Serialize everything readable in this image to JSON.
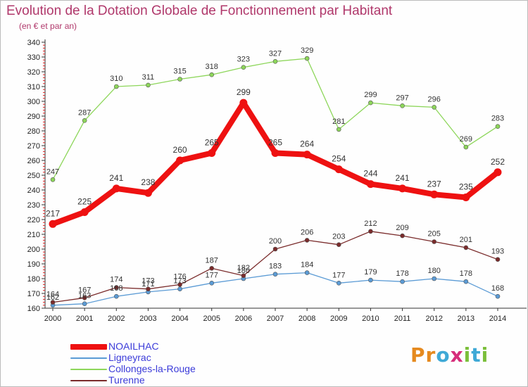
{
  "title": "Evolution de la Dotation Globale de Fonctionnement par Habitant",
  "subtitle": "(en € et par an)",
  "logo": {
    "letters": [
      "P",
      "r",
      "o",
      "x",
      "i",
      "t",
      "i"
    ],
    "colors": [
      "#e58a1f",
      "#e58a1f",
      "#3fa9d6",
      "#d62d7a",
      "#7bbf3a",
      "#3fa9d6",
      "#7bbf3a"
    ]
  },
  "chart_data": {
    "type": "line",
    "x": [
      2000,
      2001,
      2002,
      2003,
      2004,
      2005,
      2006,
      2007,
      2008,
      2009,
      2010,
      2011,
      2012,
      2013,
      2014
    ],
    "ylim": [
      160,
      340
    ],
    "yticks": [
      160,
      170,
      180,
      190,
      200,
      210,
      220,
      230,
      240,
      250,
      260,
      270,
      280,
      290,
      300,
      310,
      320,
      330,
      340
    ],
    "grid": false,
    "legend_position": "bottom-left",
    "series": [
      {
        "name": "Ligneyrac",
        "color": "#5b9bd5",
        "values": [
          162,
          163,
          168,
          171,
          173,
          177,
          180,
          183,
          184,
          177,
          179,
          178,
          180,
          178,
          168
        ]
      },
      {
        "name": "Collonges-la-Rouge",
        "color": "#8dd65a",
        "values": [
          247,
          287,
          310,
          311,
          315,
          318,
          323,
          327,
          329,
          281,
          299,
          297,
          296,
          269,
          283
        ]
      },
      {
        "name": "Turenne",
        "color": "#7a2b2b",
        "values": [
          164,
          167,
          174,
          173,
          176,
          187,
          182,
          200,
          206,
          203,
          212,
          209,
          205,
          201,
          193
        ]
      },
      {
        "name": "NOAILHAC",
        "color": "#ee1111",
        "values": [
          217,
          225,
          241,
          238,
          260,
          265,
          299,
          265,
          264,
          254,
          244,
          241,
          237,
          235,
          252
        ]
      }
    ]
  }
}
